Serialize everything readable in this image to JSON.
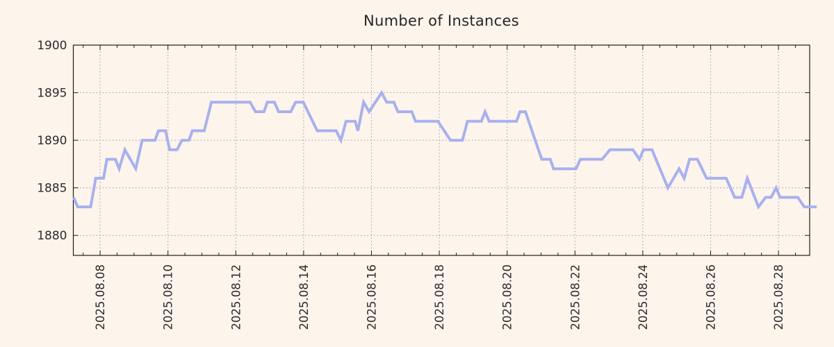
{
  "page": {
    "background": "#fdf4ec"
  },
  "chart_data": {
    "type": "line",
    "title": "Number of Instances",
    "grid": true,
    "legend": "none",
    "colors": {
      "line": "#a8b1ee",
      "grid": "#999999",
      "axis": "#1c1c1c",
      "text": "#2b2b2b",
      "background": "#fdf4ec"
    },
    "x_axis": {
      "tick_labels": [
        "2025.08.08",
        "2025.08.10",
        "2025.08.12",
        "2025.08.14",
        "2025.08.16",
        "2025.08.18",
        "2025.08.20",
        "2025.08.22",
        "2025.08.24",
        "2025.08.26",
        "2025.08.28"
      ],
      "tick_positions_days": [
        0,
        2,
        4,
        6,
        8,
        10,
        12,
        14,
        16,
        18,
        20
      ],
      "minor_tick_interval_days": 0.5,
      "range_days": [
        -0.79,
        20.92
      ]
    },
    "y_axis": {
      "tick_labels": [
        "1880",
        "1885",
        "1890",
        "1895",
        "1900"
      ],
      "tick_values": [
        1880,
        1885,
        1890,
        1895,
        1900
      ],
      "range": [
        1877.9,
        1900
      ]
    },
    "series": [
      {
        "name": "instances",
        "points": [
          [
            -0.78,
            1884
          ],
          [
            -0.66,
            1883
          ],
          [
            -0.28,
            1883
          ],
          [
            -0.13,
            1886
          ],
          [
            0.1,
            1886
          ],
          [
            0.2,
            1888
          ],
          [
            0.45,
            1888
          ],
          [
            0.56,
            1887
          ],
          [
            0.73,
            1889
          ],
          [
            1.05,
            1887
          ],
          [
            1.24,
            1890
          ],
          [
            1.62,
            1890
          ],
          [
            1.72,
            1891
          ],
          [
            1.93,
            1891
          ],
          [
            2.05,
            1889
          ],
          [
            2.27,
            1889
          ],
          [
            2.41,
            1890
          ],
          [
            2.62,
            1890
          ],
          [
            2.72,
            1891
          ],
          [
            3.07,
            1891
          ],
          [
            3.28,
            1894
          ],
          [
            4.42,
            1894
          ],
          [
            4.58,
            1893
          ],
          [
            4.83,
            1893
          ],
          [
            4.93,
            1894
          ],
          [
            5.14,
            1894
          ],
          [
            5.26,
            1893
          ],
          [
            5.62,
            1893
          ],
          [
            5.76,
            1894
          ],
          [
            5.99,
            1894
          ],
          [
            6.4,
            1891
          ],
          [
            6.96,
            1891
          ],
          [
            7.1,
            1890
          ],
          [
            7.25,
            1892
          ],
          [
            7.52,
            1892
          ],
          [
            7.6,
            1891
          ],
          [
            7.77,
            1894
          ],
          [
            7.93,
            1893
          ],
          [
            8.3,
            1895
          ],
          [
            8.45,
            1894
          ],
          [
            8.66,
            1894
          ],
          [
            8.78,
            1893
          ],
          [
            9.19,
            1893
          ],
          [
            9.3,
            1892
          ],
          [
            9.96,
            1892
          ],
          [
            10.33,
            1890
          ],
          [
            10.68,
            1890
          ],
          [
            10.83,
            1892
          ],
          [
            11.24,
            1892
          ],
          [
            11.35,
            1893
          ],
          [
            11.47,
            1892
          ],
          [
            12.28,
            1892
          ],
          [
            12.38,
            1893
          ],
          [
            12.54,
            1893
          ],
          [
            13.02,
            1888
          ],
          [
            13.27,
            1888
          ],
          [
            13.37,
            1887
          ],
          [
            14.03,
            1887
          ],
          [
            14.16,
            1888
          ],
          [
            14.8,
            1888
          ],
          [
            15.03,
            1889
          ],
          [
            15.71,
            1889
          ],
          [
            15.9,
            1888
          ],
          [
            16.02,
            1889
          ],
          [
            16.27,
            1889
          ],
          [
            16.74,
            1885
          ],
          [
            17.07,
            1887
          ],
          [
            17.22,
            1886
          ],
          [
            17.38,
            1888
          ],
          [
            17.61,
            1888
          ],
          [
            17.88,
            1886
          ],
          [
            18.46,
            1886
          ],
          [
            18.71,
            1884
          ],
          [
            18.92,
            1884
          ],
          [
            19.08,
            1886
          ],
          [
            19.41,
            1883
          ],
          [
            19.62,
            1884
          ],
          [
            19.78,
            1884
          ],
          [
            19.93,
            1885
          ],
          [
            20.05,
            1884
          ],
          [
            20.57,
            1884
          ],
          [
            20.76,
            1883
          ],
          [
            21.13,
            1883
          ]
        ]
      }
    ]
  }
}
